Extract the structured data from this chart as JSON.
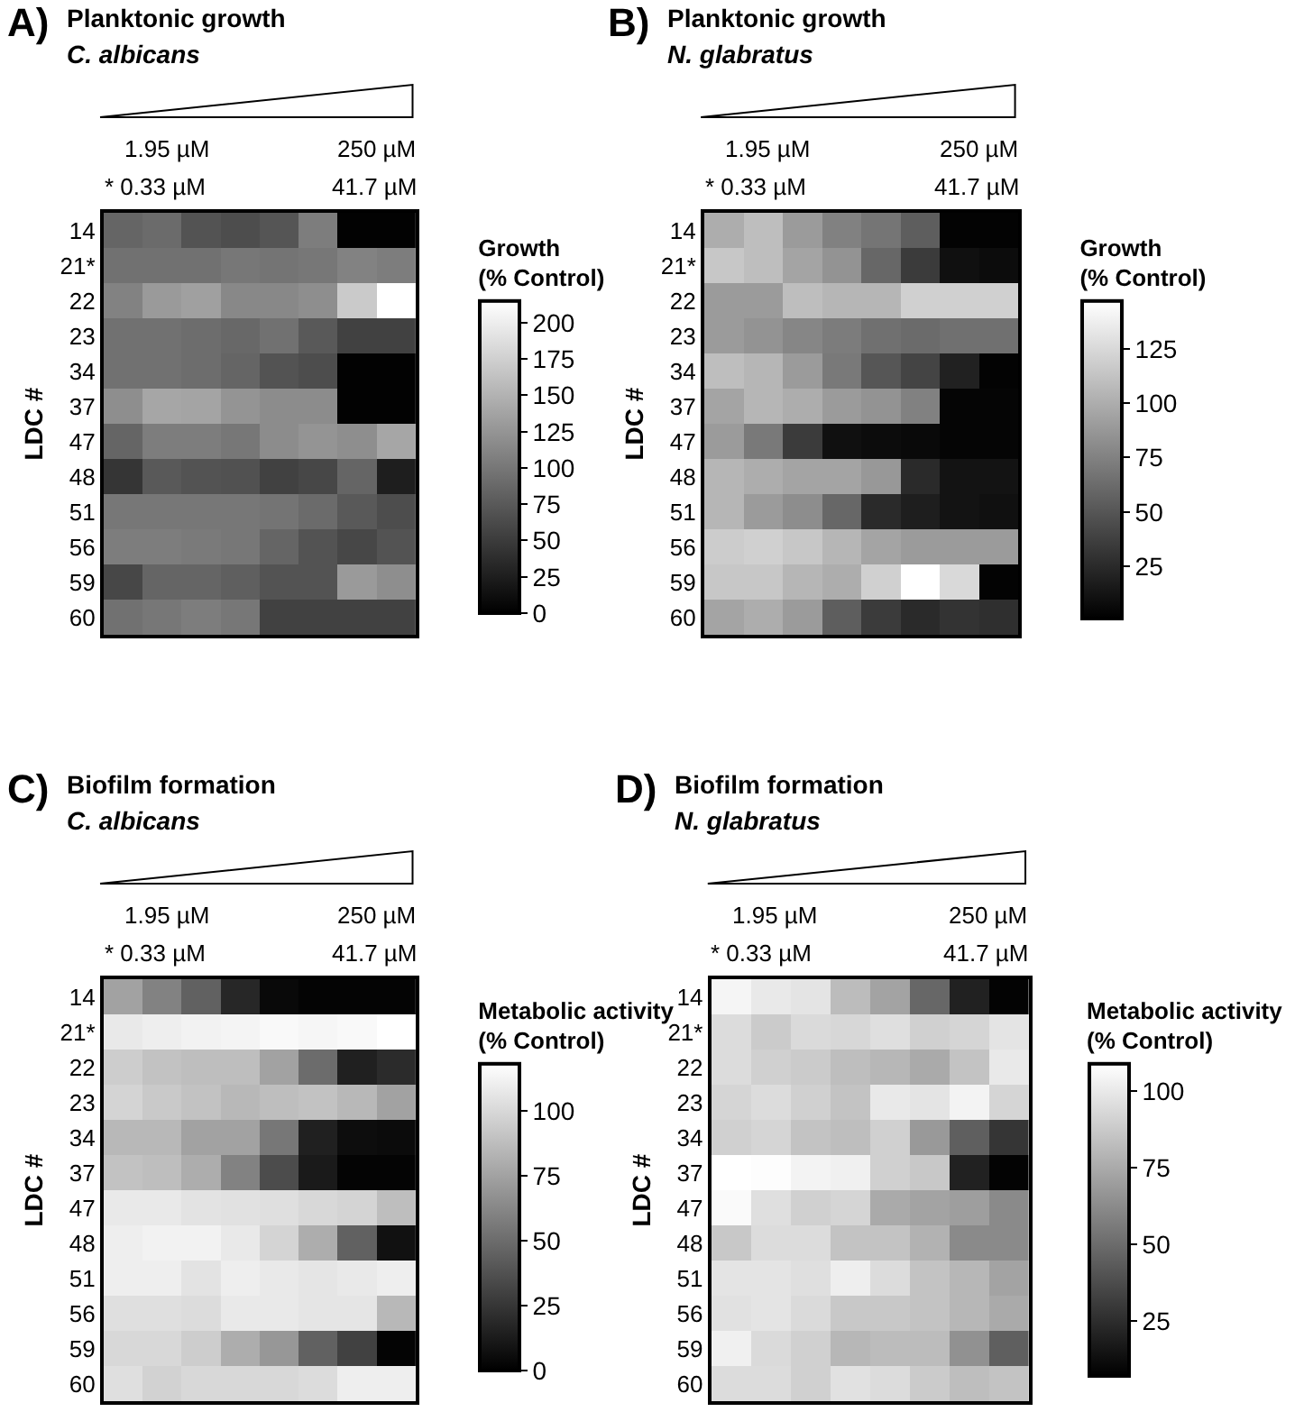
{
  "chart_data": [
    {
      "type": "heatmap",
      "title": "Planktonic growth",
      "subtitle": "C. albicans",
      "ylabel": "LDC #",
      "clabel": "Growth\n(% Control)",
      "annotations": [
        "A)",
        "1.95 µM",
        "250 µM",
        "* 0.33 µM",
        "41.7 µM"
      ],
      "categories": [
        null,
        null,
        null,
        null,
        null,
        null,
        null,
        null
      ],
      "y_categories": [
        "14",
        "21*",
        "22",
        "23",
        "34",
        "37",
        "47",
        "48",
        "51",
        "56",
        "59",
        "60"
      ],
      "cells": [
        [
          85,
          90,
          70,
          65,
          72,
          105,
          2,
          2
        ],
        [
          95,
          95,
          95,
          100,
          98,
          100,
          110,
          105
        ],
        [
          110,
          130,
          135,
          115,
          115,
          120,
          170,
          215
        ],
        [
          95,
          95,
          92,
          88,
          95,
          75,
          55,
          55
        ],
        [
          95,
          95,
          92,
          85,
          70,
          65,
          2,
          2
        ],
        [
          120,
          140,
          138,
          125,
          118,
          118,
          2,
          2
        ],
        [
          85,
          105,
          105,
          100,
          118,
          125,
          120,
          140
        ],
        [
          45,
          75,
          70,
          68,
          55,
          60,
          85,
          25
        ],
        [
          100,
          100,
          100,
          100,
          98,
          90,
          75,
          65
        ],
        [
          105,
          105,
          103,
          100,
          85,
          70,
          60,
          70
        ],
        [
          60,
          85,
          85,
          80,
          70,
          70,
          130,
          120
        ],
        [
          95,
          100,
          105,
          100,
          55,
          55,
          55,
          55
        ]
      ],
      "clim": [
        0,
        215
      ],
      "cticks": [
        0,
        25,
        50,
        75,
        100,
        125,
        150,
        175,
        200
      ]
    },
    {
      "type": "heatmap",
      "title": "Planktonic growth",
      "subtitle": "N. glabratus",
      "ylabel": "LDC #",
      "clabel": "Growth\n(% Control)",
      "annotations": [
        "B)",
        "1.95 µM",
        "250 µM",
        "* 0.33 µM",
        "41.7 µM"
      ],
      "categories": [
        null,
        null,
        null,
        null,
        null,
        null,
        null,
        null
      ],
      "y_categories": [
        "14",
        "21*",
        "22",
        "23",
        "34",
        "37",
        "47",
        "48",
        "51",
        "56",
        "59",
        "60"
      ],
      "cells": [
        [
          100,
          110,
          90,
          75,
          68,
          55,
          3,
          3
        ],
        [
          115,
          110,
          95,
          85,
          60,
          35,
          10,
          8
        ],
        [
          90,
          90,
          110,
          105,
          105,
          120,
          120,
          120
        ],
        [
          90,
          85,
          78,
          72,
          65,
          62,
          65,
          65
        ],
        [
          110,
          105,
          90,
          70,
          50,
          40,
          20,
          3
        ],
        [
          95,
          105,
          100,
          90,
          85,
          75,
          4,
          4
        ],
        [
          90,
          70,
          35,
          10,
          8,
          6,
          4,
          4
        ],
        [
          105,
          100,
          95,
          95,
          88,
          25,
          12,
          12
        ],
        [
          105,
          90,
          82,
          60,
          25,
          18,
          12,
          10
        ],
        [
          118,
          120,
          115,
          105,
          95,
          90,
          90,
          90
        ],
        [
          115,
          115,
          105,
          100,
          120,
          147,
          125,
          3
        ],
        [
          95,
          100,
          90,
          55,
          35,
          25,
          30,
          28
        ]
      ],
      "clim": [
        1,
        147
      ],
      "cticks": [
        25,
        50,
        75,
        100,
        125
      ]
    },
    {
      "type": "heatmap",
      "title": "Biofilm formation",
      "subtitle": "C. albicans",
      "ylabel": "LDC #",
      "clabel": "Metabolic activity\n(% Control)",
      "annotations": [
        "C)",
        "1.95 µM",
        "250 µM",
        "* 0.33 µM",
        "41.7 µM"
      ],
      "categories": [
        null,
        null,
        null,
        null,
        null,
        null,
        null,
        null
      ],
      "y_categories": [
        "14",
        "21*",
        "22",
        "23",
        "34",
        "37",
        "47",
        "48",
        "51",
        "56",
        "59",
        "60"
      ],
      "cells": [
        [
          75,
          60,
          45,
          18,
          4,
          2,
          2,
          2
        ],
        [
          108,
          110,
          112,
          113,
          115,
          114,
          115,
          118
        ],
        [
          95,
          90,
          88,
          88,
          75,
          50,
          15,
          20
        ],
        [
          98,
          93,
          90,
          85,
          88,
          90,
          85,
          75
        ],
        [
          85,
          85,
          75,
          75,
          55,
          15,
          6,
          5
        ],
        [
          90,
          88,
          80,
          60,
          35,
          12,
          2,
          2
        ],
        [
          108,
          108,
          105,
          104,
          103,
          100,
          98,
          88
        ],
        [
          110,
          112,
          112,
          108,
          98,
          80,
          45,
          8
        ],
        [
          110,
          110,
          105,
          110,
          108,
          106,
          108,
          110
        ],
        [
          103,
          103,
          102,
          108,
          108,
          106,
          106,
          85
        ],
        [
          100,
          100,
          95,
          80,
          70,
          45,
          30,
          2
        ],
        [
          103,
          97,
          100,
          100,
          100,
          102,
          110,
          110
        ]
      ],
      "clim": [
        0,
        118
      ],
      "cticks": [
        0,
        25,
        50,
        75,
        100
      ]
    },
    {
      "type": "heatmap",
      "title": "Biofilm formation",
      "subtitle": "N. glabratus",
      "ylabel": "LDC #",
      "clabel": "Metabolic activity\n(% Control)",
      "annotations": [
        "D)",
        "1.95 µM",
        "250 µM",
        "* 0.33 µM",
        "41.7 µM"
      ],
      "categories": [
        null,
        null,
        null,
        null,
        null,
        null,
        null,
        null
      ],
      "y_categories": [
        "14",
        "21*",
        "22",
        "23",
        "34",
        "37",
        "47",
        "48",
        "51",
        "56",
        "59",
        "60"
      ],
      "cells": [
        [
          105,
          100,
          98,
          82,
          72,
          48,
          20,
          8
        ],
        [
          95,
          88,
          94,
          93,
          96,
          90,
          92,
          98
        ],
        [
          95,
          90,
          88,
          83,
          80,
          75,
          85,
          100
        ],
        [
          92,
          95,
          90,
          85,
          100,
          98,
          104,
          92
        ],
        [
          90,
          92,
          85,
          83,
          90,
          68,
          45,
          28
        ],
        [
          109,
          108,
          104,
          103,
          90,
          87,
          20,
          8
        ],
        [
          107,
          96,
          90,
          92,
          75,
          72,
          70,
          62
        ],
        [
          87,
          95,
          95,
          85,
          85,
          78,
          62,
          62
        ],
        [
          98,
          98,
          96,
          102,
          95,
          85,
          80,
          72
        ],
        [
          97,
          98,
          94,
          87,
          87,
          85,
          80,
          75
        ],
        [
          103,
          94,
          90,
          80,
          82,
          82,
          65,
          45
        ],
        [
          95,
          95,
          90,
          97,
          95,
          88,
          83,
          85
        ]
      ],
      "clim": [
        7,
        109
      ],
      "cticks": [
        25,
        50,
        75,
        100
      ]
    }
  ]
}
